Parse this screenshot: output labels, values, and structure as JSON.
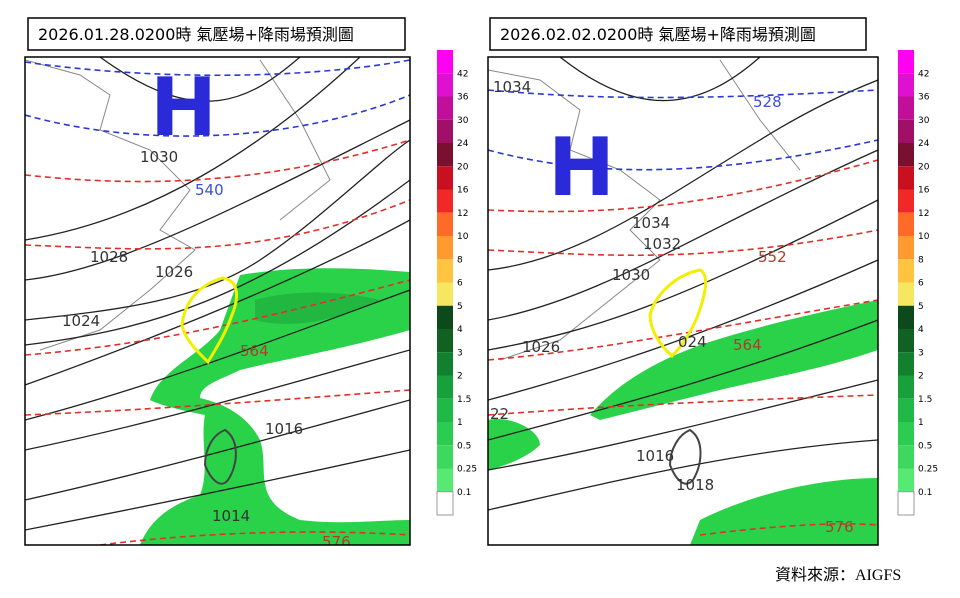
{
  "panels": [
    {
      "title": "2026.01.28.0200時  氣壓場+降雨場預測圖",
      "high": "H",
      "labels": [
        "1030",
        "540",
        "1028",
        "1026",
        "1024",
        "564",
        "1016",
        "1014",
        "576"
      ]
    },
    {
      "title": "2026.02.02.0200時  氣壓場+降雨場預測圖",
      "high": "H",
      "labels": [
        "1034",
        "528",
        "1034",
        "1032",
        "1030",
        "552",
        "1026",
        "024",
        "564",
        "22",
        "1016",
        "1018",
        "576"
      ]
    }
  ],
  "colorbar": {
    "labels": [
      "42",
      "36",
      "30",
      "24",
      "20",
      "16",
      "12",
      "10",
      "8",
      "6",
      "5",
      "4",
      "3",
      "2",
      "1.5",
      "1",
      "0.5",
      "0.25",
      "0.1"
    ]
  },
  "source": "資料來源：AIGFS"
}
